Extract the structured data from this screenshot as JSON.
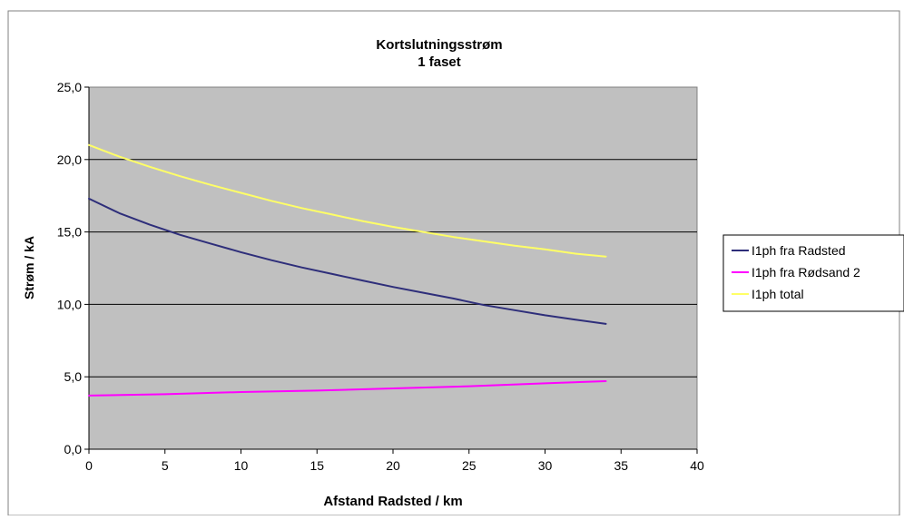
{
  "chart_data": {
    "type": "line",
    "title": "Kortslutningsstrøm",
    "subtitle": "1 faset",
    "xlabel": "Afstand Radsted / km",
    "ylabel": "Strøm / kA",
    "xlim": [
      0,
      40
    ],
    "ylim": [
      0,
      25
    ],
    "x_ticks": [
      "0",
      "5",
      "10",
      "15",
      "20",
      "25",
      "30",
      "35",
      "40"
    ],
    "y_ticks": [
      "0,0",
      "5,0",
      "10,0",
      "15,0",
      "20,0",
      "25,0"
    ],
    "grid": true,
    "legend_position": "right",
    "plot_background": "#c0c0c0",
    "series": [
      {
        "name": "I1ph fra Radsted",
        "color": "#2e2e7a",
        "x": [
          0,
          2,
          4,
          6,
          8,
          10,
          12,
          14,
          16,
          18,
          20,
          22,
          24,
          26,
          28,
          30,
          32,
          34
        ],
        "y": [
          17.3,
          16.3,
          15.5,
          14.8,
          14.2,
          13.6,
          13.05,
          12.55,
          12.1,
          11.65,
          11.2,
          10.8,
          10.4,
          9.95,
          9.6,
          9.25,
          8.95,
          8.65
        ]
      },
      {
        "name": "I1ph fra Rødsand 2",
        "color": "#ff00ff",
        "x": [
          0,
          5,
          10,
          15,
          20,
          25,
          30,
          34
        ],
        "y": [
          3.7,
          3.8,
          3.95,
          4.05,
          4.2,
          4.35,
          4.55,
          4.7
        ]
      },
      {
        "name": "I1ph total",
        "color": "#ffff66",
        "x": [
          0,
          2,
          4,
          6,
          8,
          10,
          12,
          14,
          16,
          18,
          20,
          22,
          24,
          26,
          28,
          30,
          32,
          34
        ],
        "y": [
          21.0,
          20.2,
          19.5,
          18.85,
          18.25,
          17.7,
          17.15,
          16.65,
          16.2,
          15.75,
          15.35,
          15.0,
          14.65,
          14.35,
          14.05,
          13.8,
          13.5,
          13.3
        ]
      }
    ]
  }
}
